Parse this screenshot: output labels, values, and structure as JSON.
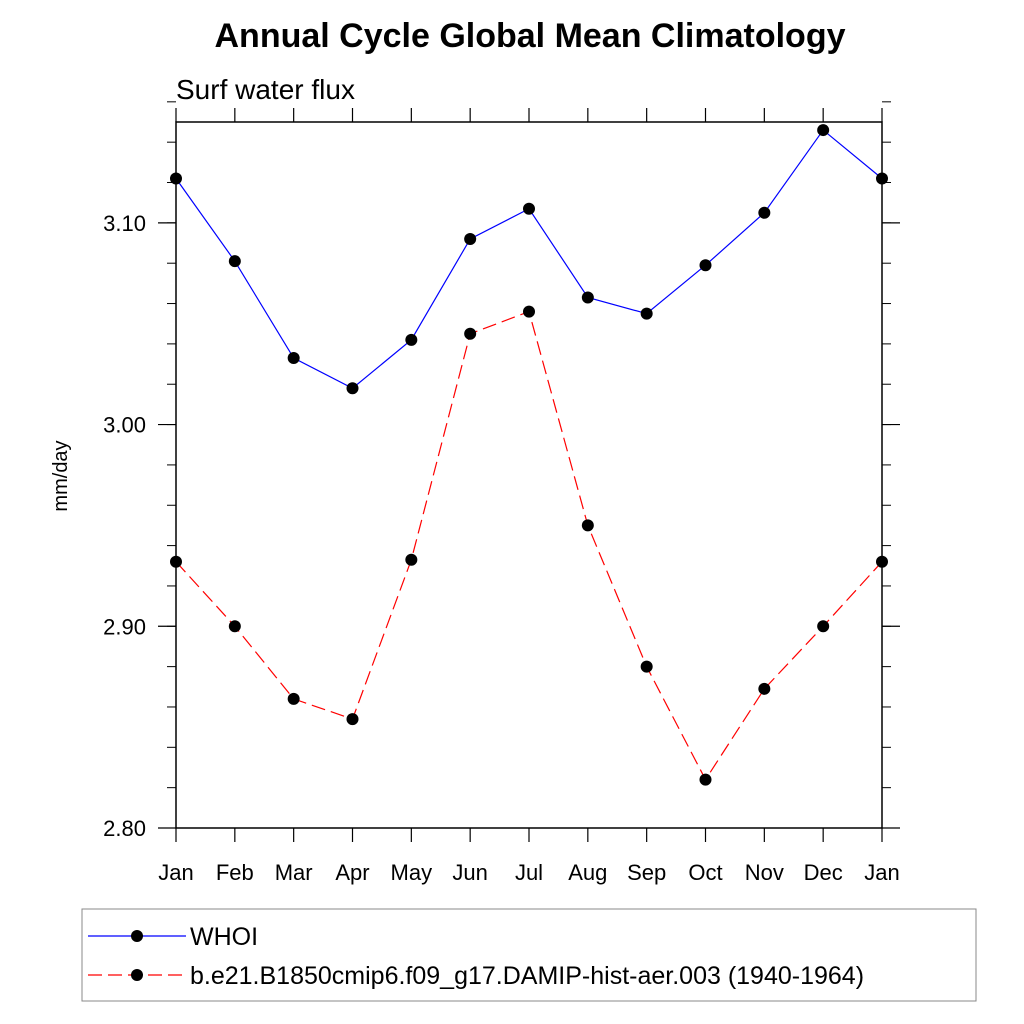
{
  "chart_data": {
    "type": "line",
    "title": "Annual Cycle Global Mean Climatology",
    "subtitle": "Surf water flux",
    "xlabel": "",
    "ylabel": "mm/day",
    "categories": [
      "Jan",
      "Feb",
      "Mar",
      "Apr",
      "May",
      "Jun",
      "Jul",
      "Aug",
      "Sep",
      "Oct",
      "Nov",
      "Dec",
      "Jan"
    ],
    "ylim": [
      2.8,
      3.15
    ],
    "yticks": [
      "2.80",
      "2.90",
      "3.00",
      "3.10"
    ],
    "ytick_values": [
      2.8,
      2.9,
      3.0,
      3.1
    ],
    "yminor_step": 0.02,
    "series": [
      {
        "name": "WHOI",
        "color": "#0000ff",
        "dashed": false,
        "values": [
          3.122,
          3.081,
          3.033,
          3.018,
          3.042,
          3.092,
          3.107,
          3.063,
          3.055,
          3.079,
          3.105,
          3.146,
          3.122
        ]
      },
      {
        "name": "b.e21.B1850cmip6.f09_g17.DAMIP-hist-aer.003 (1940-1964)",
        "color": "#ff0000",
        "dashed": true,
        "values": [
          2.932,
          2.9,
          2.864,
          2.854,
          2.933,
          3.045,
          3.056,
          2.95,
          2.88,
          2.824,
          2.869,
          2.9,
          2.932
        ]
      }
    ],
    "legend_position": "bottom",
    "grid": false
  }
}
